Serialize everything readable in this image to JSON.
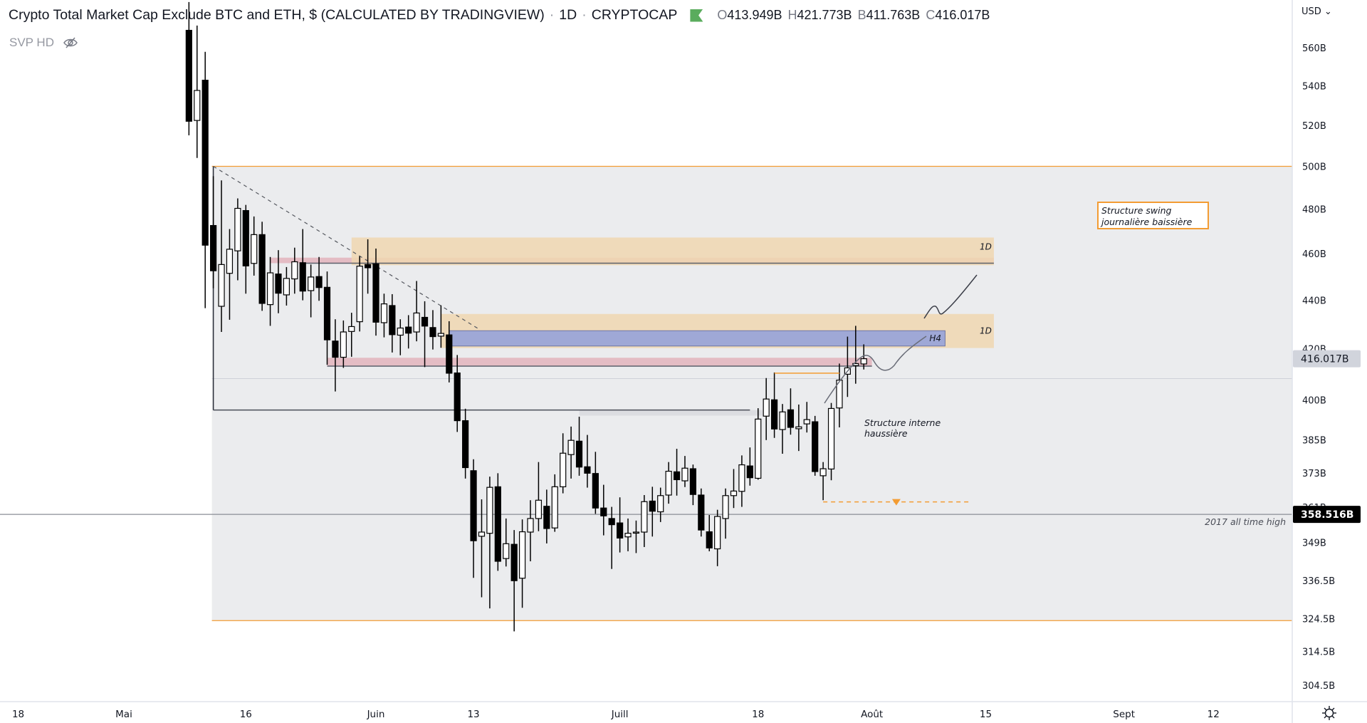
{
  "header": {
    "title": "Crypto Total Market Cap Exclude BTC and ETH, $ (CALCULATED BY TRADINGVIEW)",
    "sep": "·",
    "interval": "1D",
    "exchange": "CRYPTOCAP",
    "ohlc": [
      {
        "key": "O",
        "value": "413.949B"
      },
      {
        "key": "H",
        "value": "421.773B"
      },
      {
        "key": "B",
        "value": "411.763B"
      },
      {
        "key": "C",
        "value": "416.017B"
      }
    ],
    "indicator": "SVP HD"
  },
  "price_axis": {
    "currency": "USD"
  },
  "colors": {
    "up": "#ffffff",
    "down": "#000000",
    "zone_orange": "#f0d7b0",
    "zone_pink": "#e4bcc4",
    "zone_blue": "#9fa8d6",
    "orange": "#f39c33",
    "range_bg": "#ebecee",
    "flag": "#5aac5d"
  },
  "chart_data": {
    "type": "candlestick",
    "title": "Crypto Total Market Cap Exclude BTC and ETH, $ (CALCULATED BY TRADINGVIEW) · 1D · CRYPTOCAP",
    "scale": "log",
    "first_date": "05-09",
    "ohlc": [
      [
        569.4,
        585,
        515.0,
        522.0
      ],
      [
        522.4,
        572,
        504.0,
        537.6
      ],
      [
        542.9,
        557.8,
        436.6,
        463.7
      ],
      [
        472.5,
        495.3,
        445,
        452.5
      ],
      [
        437.4,
        493.3,
        426.8,
        455.2
      ],
      [
        451.4,
        470.9,
        431.8,
        461.9
      ],
      [
        461.2,
        484.9,
        448.4,
        480.3
      ],
      [
        479.3,
        481.9,
        442.7,
        454.6
      ],
      [
        455.7,
        476.6,
        450.4,
        468.4
      ],
      [
        468.4,
        474.2,
        435.5,
        438.6
      ],
      [
        438.1,
        458.5,
        429.3,
        451.6
      ],
      [
        451.1,
        461.5,
        434.5,
        442.9
      ],
      [
        442.2,
        454.1,
        437.7,
        449.2
      ],
      [
        449.0,
        462.6,
        442.7,
        456.4
      ],
      [
        456.0,
        470.9,
        439.9,
        443.8
      ],
      [
        444.0,
        455.2,
        432.8,
        449.8
      ],
      [
        450.0,
        458.5,
        439.7,
        445.3
      ],
      [
        445.4,
        452.2,
        413.6,
        423.6
      ],
      [
        423.1,
        432.0,
        403.2,
        416.6
      ],
      [
        416.6,
        431.5,
        412.4,
        426.8
      ],
      [
        427.0,
        434.7,
        416.8,
        429.0
      ],
      [
        431.0,
        458.8,
        427.0,
        454.5
      ],
      [
        455.2,
        466.3,
        442.7,
        453.8
      ],
      [
        455.5,
        462.2,
        425.3,
        430.8
      ],
      [
        430.6,
        442.7,
        424.6,
        438.4
      ],
      [
        437.7,
        442.5,
        418.5,
        425.7
      ],
      [
        425.5,
        432.0,
        417.4,
        428.4
      ],
      [
        428.8,
        433.7,
        420.1,
        426.3
      ],
      [
        426.8,
        448.1,
        423.0,
        434.6
      ],
      [
        432.8,
        439.5,
        412.7,
        429.2
      ],
      [
        428.6,
        435.8,
        419.7,
        424.9
      ],
      [
        425.1,
        437.8,
        420.4,
        426.2
      ],
      [
        425.6,
        431.2,
        406.7,
        410.3
      ],
      [
        410.4,
        417.5,
        387.9,
        392.1
      ],
      [
        392.1,
        396.6,
        371.0,
        374.9
      ],
      [
        373.8,
        377.9,
        337.4,
        349.6
      ],
      [
        351.1,
        363.7,
        331.2,
        352.5
      ],
      [
        352.1,
        371.7,
        327.7,
        367.9
      ],
      [
        368.1,
        372.9,
        339.7,
        342.8
      ],
      [
        343.7,
        357.1,
        341.1,
        348.6
      ],
      [
        348.4,
        353.2,
        320.6,
        336.5
      ],
      [
        337.3,
        356.8,
        327.9,
        352.6
      ],
      [
        352.5,
        363.4,
        342.8,
        357.1
      ],
      [
        357.1,
        376.9,
        352.8,
        363.4
      ],
      [
        361.3,
        367.1,
        348.7,
        353.7
      ],
      [
        353.9,
        372.5,
        352.6,
        368.1
      ],
      [
        368.1,
        387.4,
        365.8,
        380.1
      ],
      [
        379.6,
        389.9,
        371.0,
        384.8
      ],
      [
        384.5,
        393.6,
        372.0,
        375.1
      ],
      [
        375.2,
        386.8,
        367.8,
        372.9
      ],
      [
        372.8,
        380.6,
        358.7,
        360.7
      ],
      [
        360.7,
        368.8,
        351.4,
        358.0
      ],
      [
        357.1,
        361.1,
        340.3,
        355.0
      ],
      [
        355.6,
        364.4,
        345.7,
        350.5
      ],
      [
        350.9,
        357.1,
        346.1,
        352.1
      ],
      [
        352.2,
        356.4,
        345.5,
        352.5
      ],
      [
        352.5,
        365.2,
        347.5,
        362.9
      ],
      [
        363.1,
        368.1,
        351.0,
        359.6
      ],
      [
        359.4,
        367.8,
        355.9,
        365.0
      ],
      [
        365.2,
        376.9,
        362.2,
        373.6
      ],
      [
        373.4,
        381.7,
        365.0,
        370.6
      ],
      [
        370.2,
        379.1,
        368.0,
        374.7
      ],
      [
        374.5,
        376.0,
        361.7,
        365.4
      ],
      [
        365.2,
        367.5,
        351.0,
        353.2
      ],
      [
        352.6,
        358.3,
        346.1,
        347.2
      ],
      [
        346.9,
        360.1,
        341.2,
        357.8
      ],
      [
        357.1,
        367.5,
        350.3,
        365.0
      ],
      [
        365.0,
        374.4,
        360.7,
        366.6
      ],
      [
        366.5,
        379.3,
        361.1,
        375.9
      ],
      [
        375.5,
        382.2,
        368.5,
        371.3
      ],
      [
        371.1,
        396.8,
        370.6,
        392.7
      ],
      [
        393.8,
        408.4,
        384.9,
        400.3
      ],
      [
        400.0,
        410.6,
        385.7,
        389.0
      ],
      [
        388.8,
        398.4,
        379.9,
        395.4
      ],
      [
        396.2,
        404.4,
        386.9,
        389.6
      ],
      [
        389.1,
        398.2,
        380.9,
        389.8
      ],
      [
        390.9,
        399.2,
        387.7,
        392.5
      ],
      [
        391.7,
        393.9,
        372.0,
        373.5
      ],
      [
        372.0,
        376.9,
        363.4,
        374.5
      ],
      [
        374.4,
        398.8,
        370.4,
        396.7
      ],
      [
        396.9,
        414.1,
        389.6,
        407.6
      ],
      [
        409.9,
        424.9,
        401.1,
        412.4
      ],
      [
        413.3,
        429.3,
        406.2,
        414.1
      ],
      [
        413.949,
        421.773,
        411.763,
        416.017
      ]
    ],
    "y_ticks": [
      "560B",
      "540B",
      "520B",
      "500B",
      "480B",
      "460B",
      "440B",
      "420B",
      "400B",
      "385B",
      "373B",
      "361B",
      "349B",
      "336.5B",
      "324.5B",
      "314.5B",
      "304.5B"
    ],
    "y_tick_values": [
      560,
      540,
      520,
      500,
      480,
      460,
      440,
      420,
      400,
      385,
      373,
      361,
      349,
      336.5,
      324.5,
      314.5,
      304.5
    ],
    "x_ticks": [
      {
        "label": "18",
        "date": "04-18"
      },
      {
        "label": "Mai",
        "date": "05-01"
      },
      {
        "label": "16",
        "date": "05-16"
      },
      {
        "label": "Juin",
        "date": "06-01"
      },
      {
        "label": "13",
        "date": "06-13"
      },
      {
        "label": "Juill",
        "date": "07-01"
      },
      {
        "label": "18",
        "date": "07-18"
      },
      {
        "label": "Août",
        "date": "08-01"
      },
      {
        "label": "15",
        "date": "08-15"
      },
      {
        "label": "Sept",
        "date": "09-01"
      },
      {
        "label": "12",
        "date": "09-12"
      }
    ],
    "last_price": {
      "value": 416.017,
      "label": "416.017B"
    },
    "marked_price": {
      "value": 358.516,
      "label": "358.516B"
    },
    "annotations": {
      "range_box": {
        "from": "05-12",
        "top": 500,
        "bottom": 323.9
      },
      "zone_1d_upper": {
        "from": "05-29",
        "to": "08-16",
        "top": 467.1,
        "bottom": 454.9,
        "label": "1D"
      },
      "pink_upper": {
        "from": "05-19",
        "to": "08-16",
        "top": 458.2,
        "bottom": 455.8
      },
      "zone_1d_lower": {
        "from": "06-09",
        "to": "08-16",
        "top": 434.2,
        "bottom": 420.3,
        "label": "1D"
      },
      "h4_box": {
        "from": "06-10",
        "to": "08-10",
        "top": 427.3,
        "bottom": 421.1,
        "label": "H4"
      },
      "pink_lower": {
        "from": "05-26",
        "to": "08-01",
        "top": 416.4,
        "bottom": 413.1
      },
      "trendline": {
        "from": "05-12",
        "p1": 500,
        "to": "06-13",
        "p2": 427.9
      },
      "support_line": {
        "from": "05-12",
        "to": "07-17",
        "price": 396.1
      },
      "gray_band": {
        "from": "06-26",
        "to": "07-19",
        "top": 396.1,
        "bottom": 394.0
      },
      "level_line": 408.2,
      "orange_line": {
        "from": "07-20",
        "to": "07-28",
        "price": 410.3
      },
      "orange_dashed": {
        "from": "07-26",
        "to": "08-13",
        "price": 362.8,
        "arrow": "08-04"
      },
      "swing_note": {
        "line1": "Structure swing",
        "line2": "journalière baissière"
      },
      "internal_note": {
        "line1": "Structure interne",
        "line2": "haussière"
      },
      "ath_note": "2017 all time high"
    }
  }
}
